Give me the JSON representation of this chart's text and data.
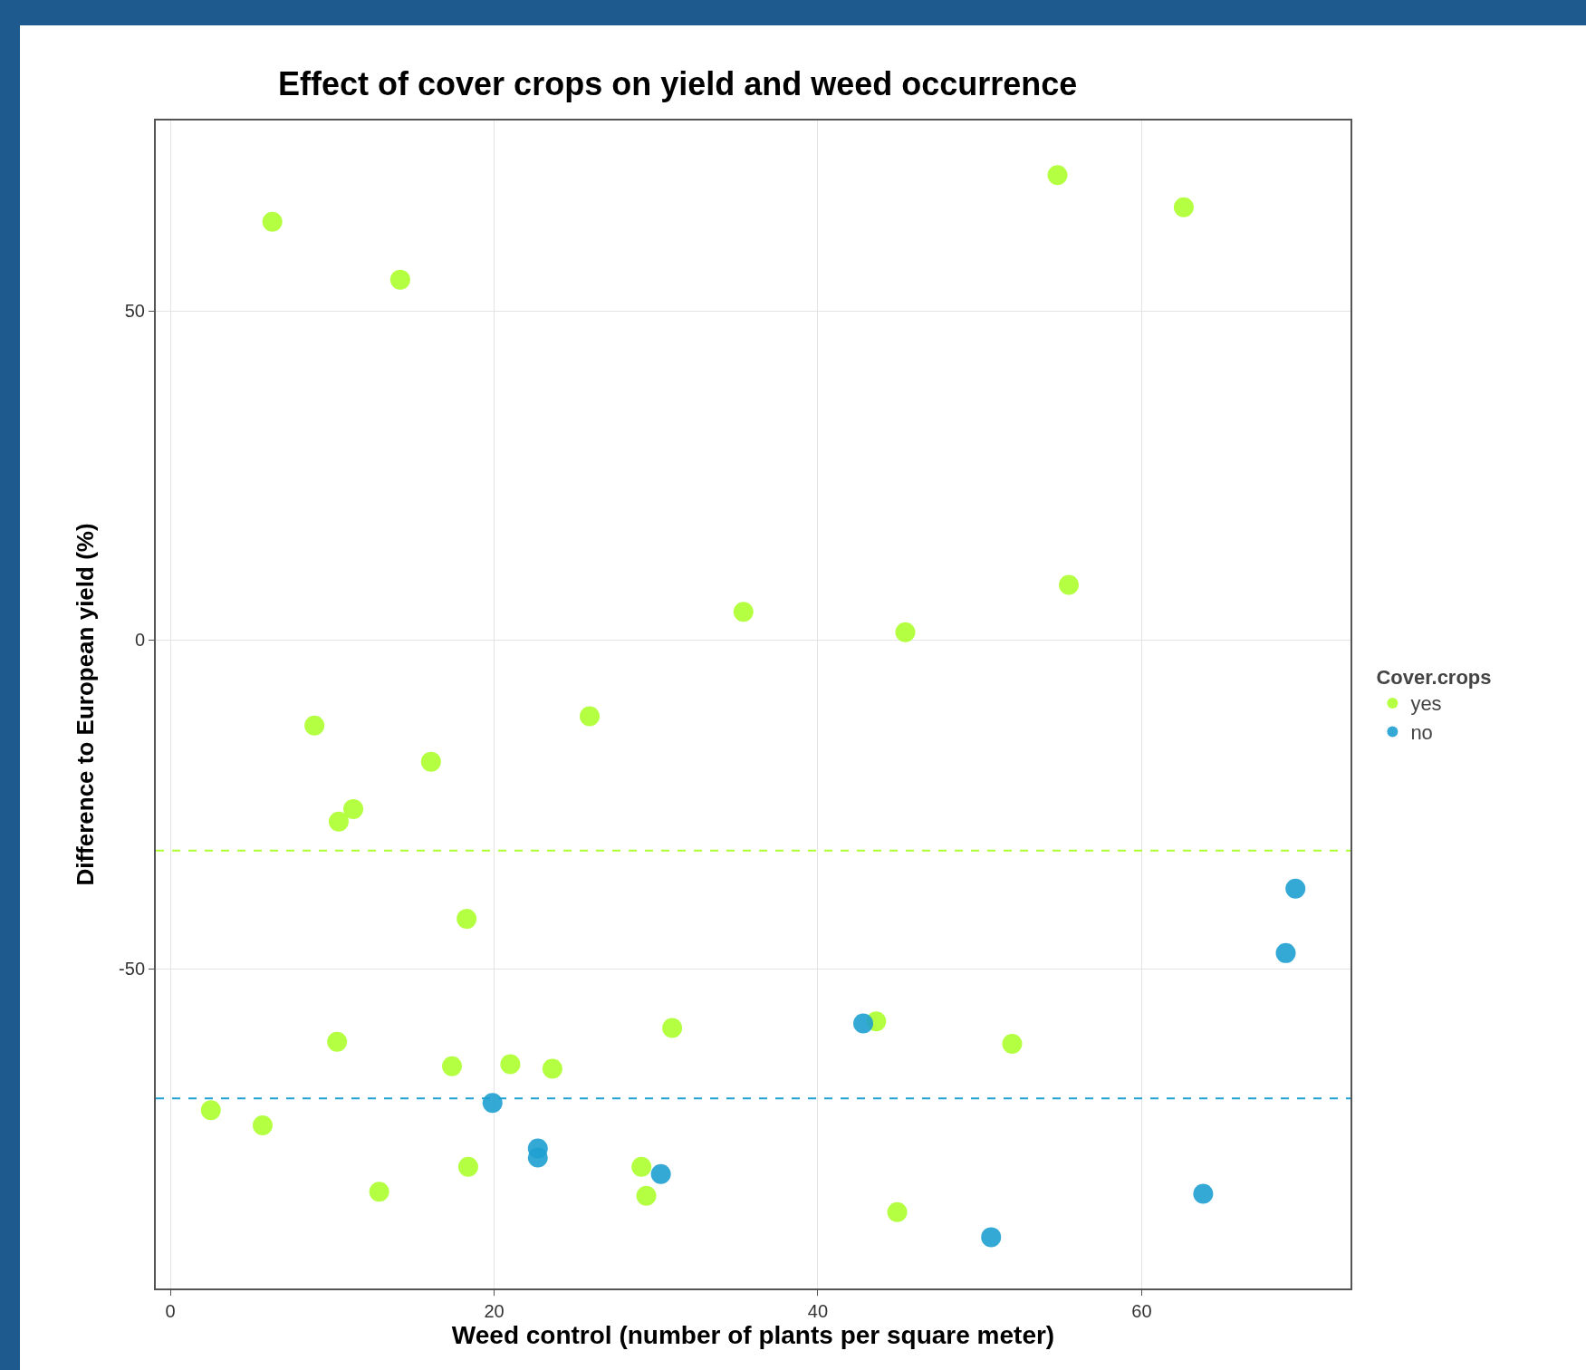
{
  "chart_data": {
    "type": "scatter",
    "title": "Effect of cover crops on yield and weed occurrence",
    "xlabel": "Weed control (number of plants per square meter)",
    "ylabel": "Difference to European yield (%)",
    "legend_title": "Cover.crops",
    "legend": "right",
    "grid": true,
    "marker": "circle",
    "xlim": [
      -0.9,
      72.9
    ],
    "xticks": [
      0,
      20,
      40,
      60
    ],
    "ylim": [
      -98.6,
      79
    ],
    "yticks": [
      -50,
      0,
      50
    ],
    "series": [
      {
        "name": "yes",
        "color": "#adff2f",
        "x": [
          6.3,
          14.2,
          54.8,
          62.6,
          35.4,
          45.4,
          55.5,
          8.9,
          25.9,
          16.1,
          10.4,
          11.3,
          18.3,
          10.3,
          31.0,
          43.6,
          52.0,
          17.4,
          21.0,
          23.6,
          2.5,
          5.7,
          18.4,
          12.9,
          29.1,
          29.4,
          44.9
        ],
        "values": [
          63.6,
          54.8,
          70.7,
          65.8,
          4.3,
          1.2,
          8.4,
          -13.0,
          -11.6,
          -18.5,
          -27.6,
          -25.7,
          -42.4,
          -61.1,
          -59.0,
          -58.0,
          -61.4,
          -64.8,
          -64.5,
          -65.2,
          -71.5,
          -73.8,
          -80.1,
          -83.9,
          -80.1,
          -84.5,
          -87.0
        ]
      },
      {
        "name": "no",
        "color": "#1ea0d0",
        "x": [
          69.5,
          68.9,
          42.8,
          19.9,
          22.7,
          22.7,
          30.3,
          63.8,
          50.7
        ],
        "values": [
          -37.8,
          -47.6,
          -58.3,
          -70.4,
          -77.3,
          -78.7,
          -81.2,
          -84.2,
          -90.8
        ]
      }
    ],
    "ref_lines": [
      {
        "axis": "y",
        "value": -32.0,
        "color": "#adff2f",
        "line_style": "dashed"
      },
      {
        "axis": "y",
        "value": -69.7,
        "color": "#1ea0d0",
        "line_style": "dashed"
      }
    ]
  }
}
